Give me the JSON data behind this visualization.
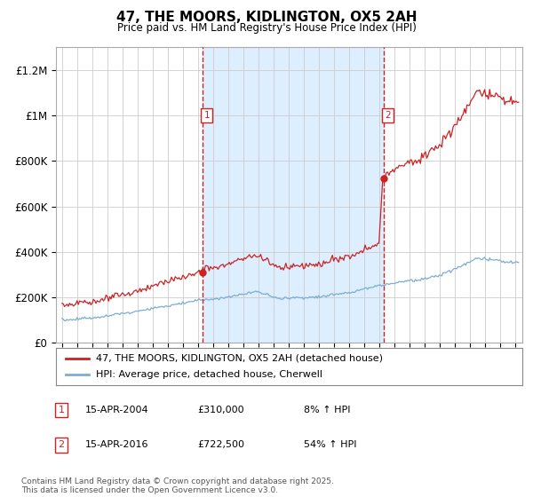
{
  "title": "47, THE MOORS, KIDLINGTON, OX5 2AH",
  "subtitle": "Price paid vs. HM Land Registry's House Price Index (HPI)",
  "ylabel_ticks": [
    "£0",
    "£200K",
    "£400K",
    "£600K",
    "£800K",
    "£1M",
    "£1.2M"
  ],
  "ytick_values": [
    0,
    200000,
    400000,
    600000,
    800000,
    1000000,
    1200000
  ],
  "ylim": [
    0,
    1300000
  ],
  "xlim_start": 1994.6,
  "xlim_end": 2025.5,
  "sale1_x": 2004.29,
  "sale1_y": 310000,
  "sale2_x": 2016.29,
  "sale2_y": 722500,
  "marker1_top_y": 1000000,
  "marker2_top_y": 1000000,
  "red_line_color": "#cc2222",
  "blue_line_color": "#7dadd4",
  "shade_color": "#ddeeff",
  "vline_color": "#cc2222",
  "legend_label_red": "47, THE MOORS, KIDLINGTON, OX5 2AH (detached house)",
  "legend_label_blue": "HPI: Average price, detached house, Cherwell",
  "annotation1_label": "1",
  "annotation1_date": "15-APR-2004",
  "annotation1_price": "£310,000",
  "annotation1_hpi": "8% ↑ HPI",
  "annotation2_label": "2",
  "annotation2_date": "15-APR-2016",
  "annotation2_price": "£722,500",
  "annotation2_hpi": "54% ↑ HPI",
  "footnote": "Contains HM Land Registry data © Crown copyright and database right 2025.\nThis data is licensed under the Open Government Licence v3.0.",
  "background_color": "#ffffff",
  "plot_bg_color": "#ffffff"
}
